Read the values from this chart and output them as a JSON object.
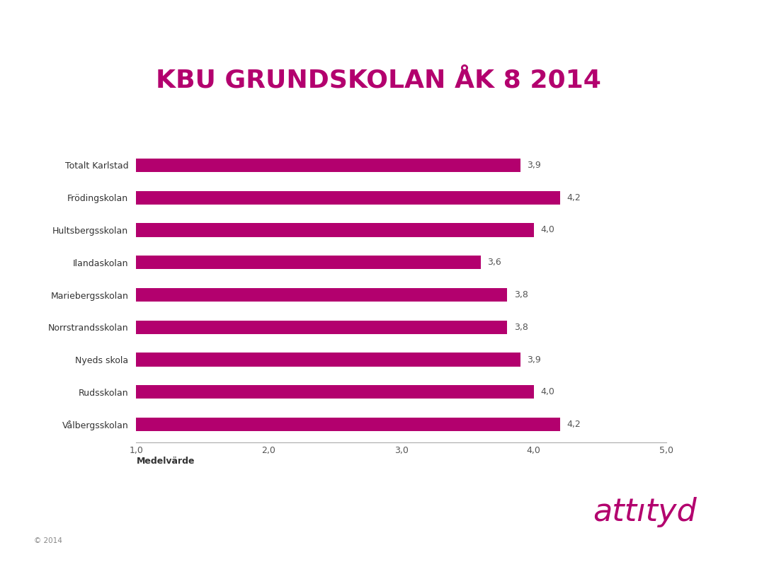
{
  "title": "KBU GRUNDSKOLAN ÅK 8 2014",
  "categories": [
    "Totalt Karlstad",
    "Frödingskolan",
    "Hultsbergsskolan",
    "Ilandaskolan",
    "Mariebergsskolan",
    "Norrstrandsskolan",
    "Nyeds skola",
    "Rudsskolan",
    "Vålbergsskolan"
  ],
  "values": [
    3.9,
    4.2,
    4.0,
    3.6,
    3.8,
    3.8,
    3.9,
    4.0,
    4.2
  ],
  "bar_color": "#b3006e",
  "xlabel": "Medelvärde",
  "xlim_min": 1.0,
  "xlim_max": 5.0,
  "xticks": [
    1.0,
    2.0,
    3.0,
    4.0,
    5.0
  ],
  "xtick_labels": [
    "1,0",
    "2,0",
    "3,0",
    "4,0",
    "5,0"
  ],
  "title_color": "#b3006e",
  "title_fontsize": 26,
  "label_fontsize": 9,
  "value_fontsize": 9,
  "xlabel_fontsize": 9,
  "copyright_text": "© 2014",
  "brand_text": "attıtyd",
  "background_color": "#ffffff",
  "bar_height": 0.42
}
